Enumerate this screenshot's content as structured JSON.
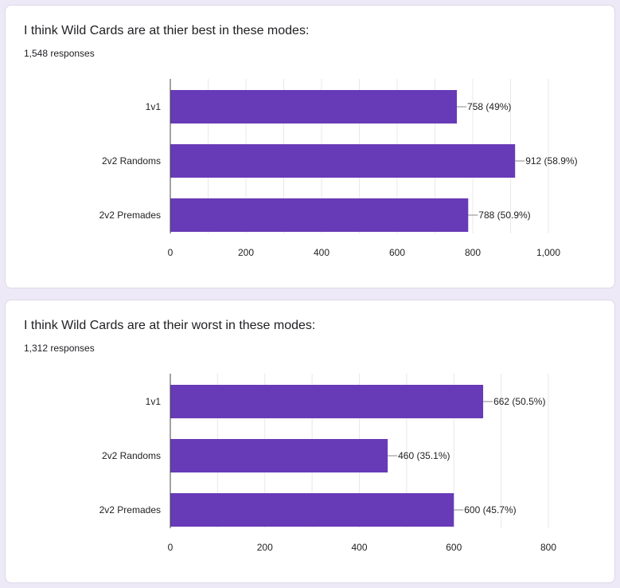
{
  "questions": [
    {
      "title": "I think Wild Cards are at thier best in these modes:",
      "responses": "1,548 responses"
    },
    {
      "title": "I think Wild Cards are at their worst in these modes:",
      "responses": "1,312 responses"
    }
  ],
  "colors": {
    "bar": "#673ab7",
    "grid": "#e8e8e8",
    "axis": "#444444",
    "text": "#222222"
  },
  "chart_data": [
    {
      "type": "bar",
      "orientation": "horizontal",
      "categories": [
        "1v1",
        "2v2 Randoms",
        "2v2 Premades"
      ],
      "values": [
        758,
        912,
        788
      ],
      "data_labels": [
        "758 (49%)",
        "912 (58.9%)",
        "788 (50.9%)"
      ],
      "xlim": [
        0,
        1000
      ],
      "ticks": [
        0,
        200,
        400,
        600,
        800,
        1000
      ],
      "tick_labels": [
        "0",
        "200",
        "400",
        "600",
        "800",
        "1,000"
      ],
      "minor_step": 100,
      "grid": true
    },
    {
      "type": "bar",
      "orientation": "horizontal",
      "categories": [
        "1v1",
        "2v2 Randoms",
        "2v2 Premades"
      ],
      "values": [
        662,
        460,
        600
      ],
      "data_labels": [
        "662 (50.5%)",
        "460 (35.1%)",
        "600 (45.7%)"
      ],
      "xlim": [
        0,
        800
      ],
      "ticks": [
        0,
        200,
        400,
        600,
        800
      ],
      "tick_labels": [
        "0",
        "200",
        "400",
        "600",
        "800"
      ],
      "minor_step": 100,
      "grid": true
    }
  ]
}
